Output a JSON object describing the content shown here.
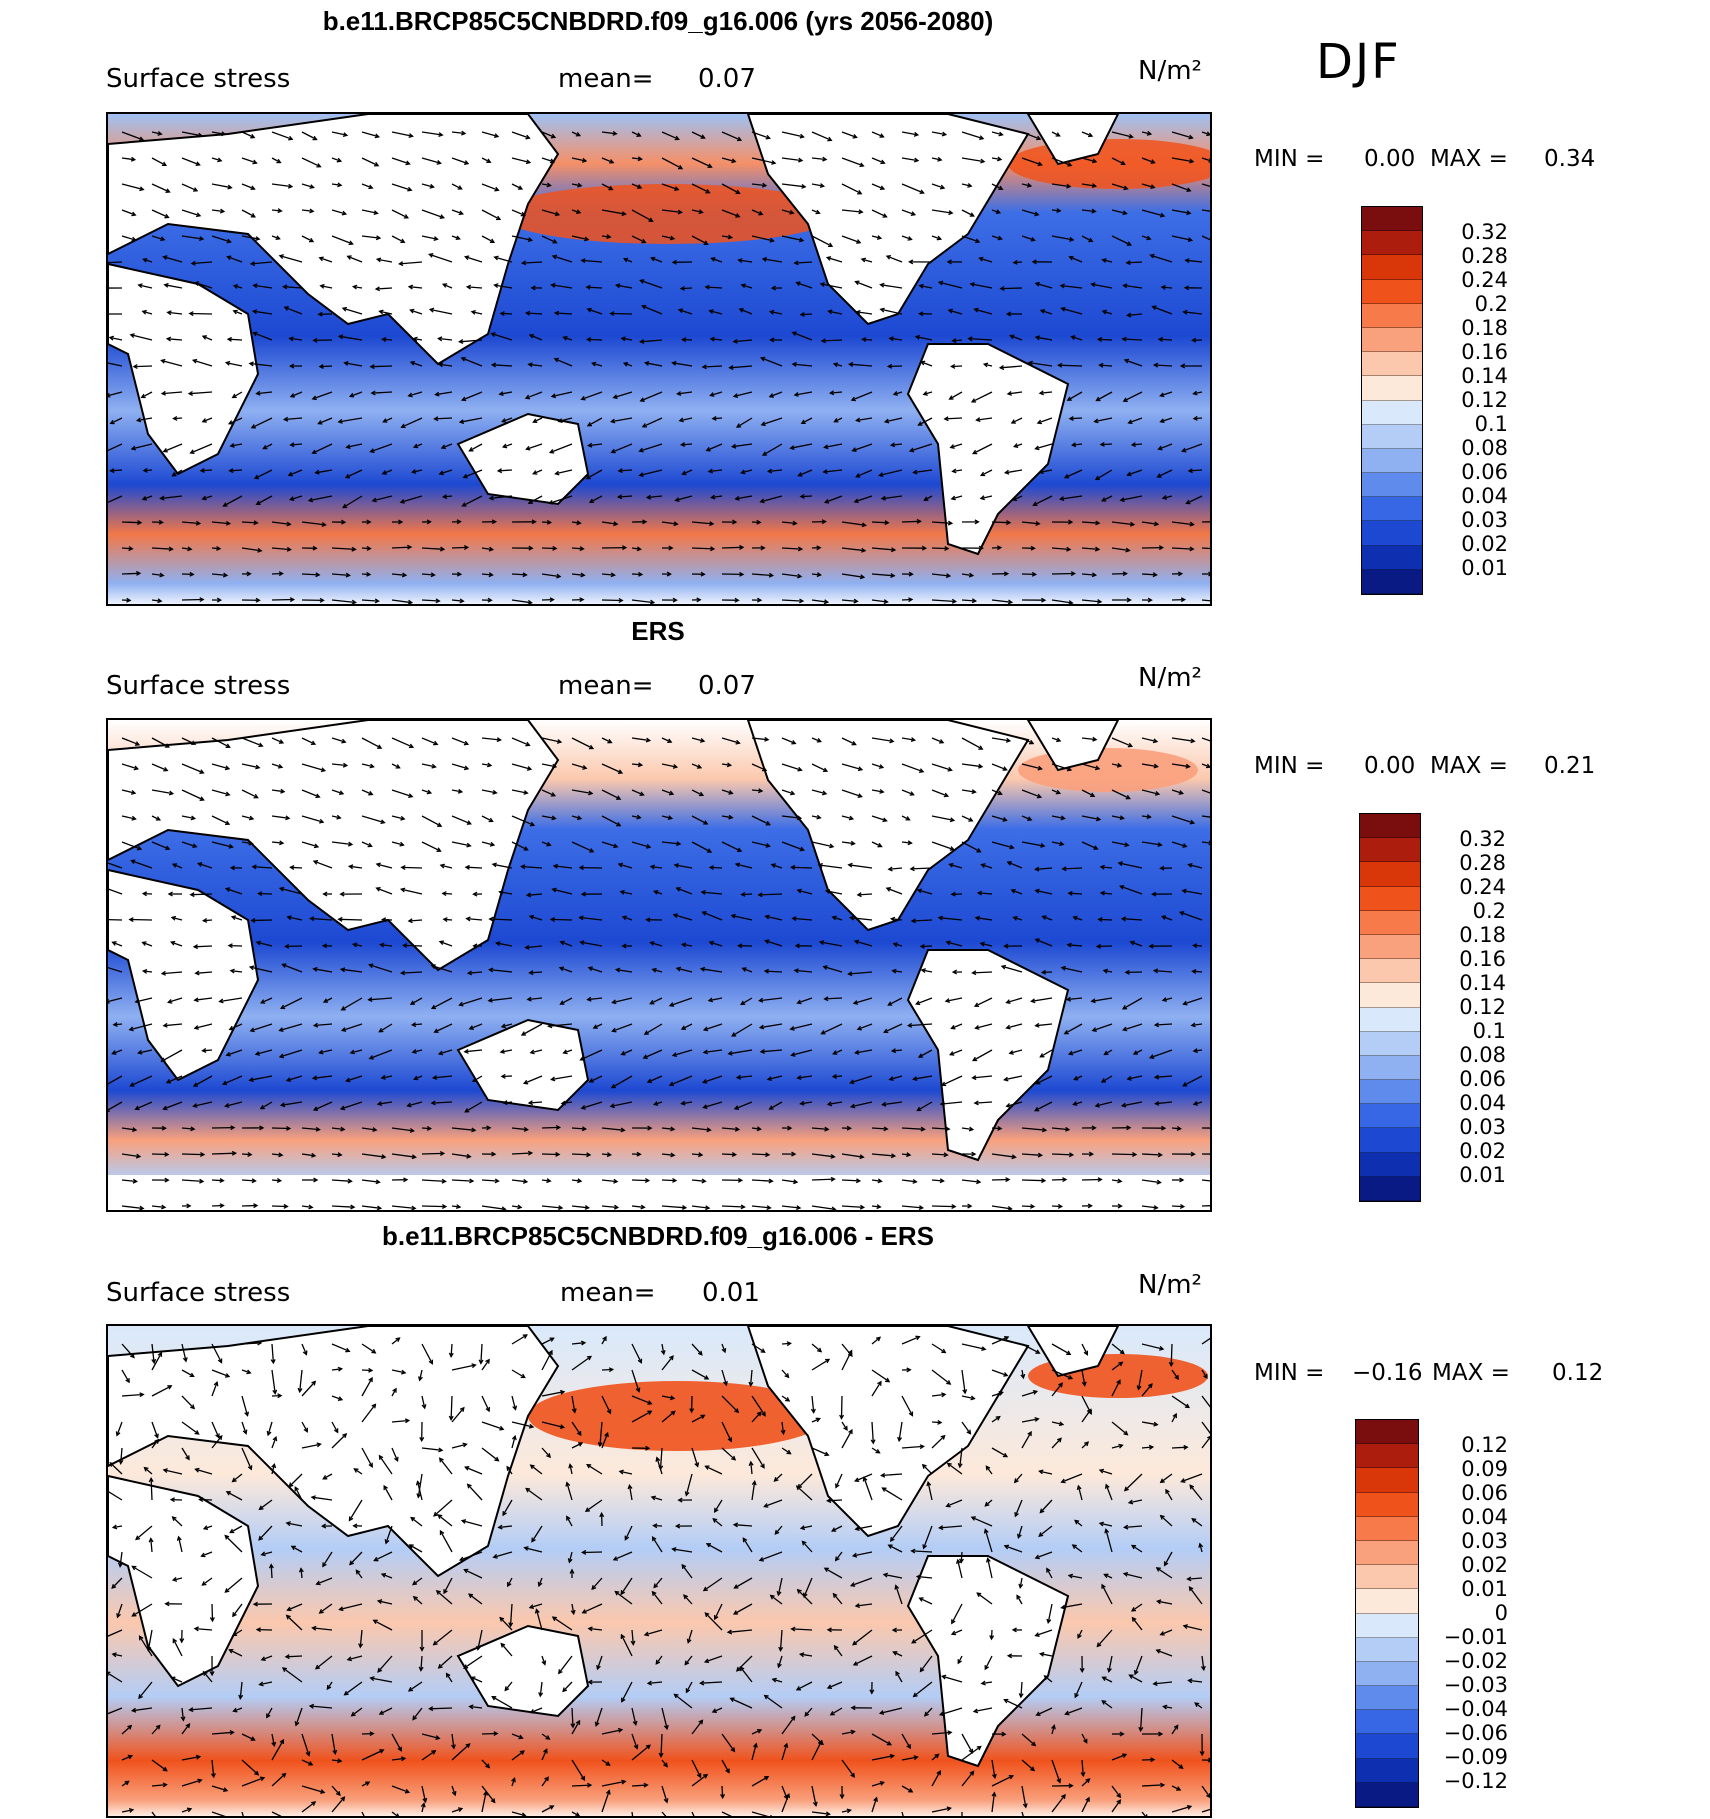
{
  "season": "DJF",
  "panels": [
    {
      "title": "b.e11.BRCP85C5CNBDRD.f09_g16.006 (yrs 2056-2080)",
      "variable": "Surface stress",
      "mean_label": "mean=",
      "mean_value": "0.07",
      "units": "N/m²",
      "min_label": "MIN =",
      "min_value": "0.00",
      "max_label": "MAX =",
      "max_value": "0.34",
      "colorbar_labels": [
        "0.32",
        "0.28",
        "0.24",
        "0.2",
        "0.18",
        "0.16",
        "0.14",
        "0.12",
        "0.1",
        "0.08",
        "0.06",
        "0.04",
        "0.03",
        "0.02",
        "0.01"
      ],
      "colorbar_colors": [
        "#7a0d0d",
        "#ad1d0e",
        "#d9370a",
        "#f0521c",
        "#f67a4a",
        "#f9a07c",
        "#fbc8ad",
        "#fde9da",
        "#d9e9fb",
        "#b3cdf6",
        "#8fb0f1",
        "#5e8bec",
        "#3767e5",
        "#1d49d2",
        "#0d2fb0",
        "#0a1a85"
      ]
    },
    {
      "title": "ERS",
      "variable": "Surface stress",
      "mean_label": "mean=",
      "mean_value": "0.07",
      "units": "N/m²",
      "min_label": "MIN =",
      "min_value": "0.00",
      "max_label": "MAX =",
      "max_value": "0.21",
      "colorbar_labels": [
        "0.32",
        "0.28",
        "0.24",
        "0.2",
        "0.18",
        "0.16",
        "0.14",
        "0.12",
        "0.1",
        "0.08",
        "0.06",
        "0.04",
        "0.03",
        "0.02",
        "0.01"
      ],
      "colorbar_colors": [
        "#7a0d0d",
        "#ad1d0e",
        "#d9370a",
        "#f0521c",
        "#f67a4a",
        "#f9a07c",
        "#fbc8ad",
        "#fde9da",
        "#d9e9fb",
        "#b3cdf6",
        "#8fb0f1",
        "#5e8bec",
        "#3767e5",
        "#1d49d2",
        "#0d2fb0",
        "#0a1a85"
      ]
    },
    {
      "title": "b.e11.BRCP85C5CNBDRD.f09_g16.006 - ERS",
      "variable": "Surface stress",
      "mean_label": "mean=",
      "mean_value": "0.01",
      "units": "N/m²",
      "min_label": "MIN =",
      "min_value": "−0.16",
      "max_label": "MAX =",
      "max_value": "0.12",
      "colorbar_labels": [
        "0.12",
        "0.09",
        "0.06",
        "0.04",
        "0.03",
        "0.02",
        "0.01",
        "0",
        "−0.01",
        "−0.02",
        "−0.03",
        "−0.04",
        "−0.06",
        "−0.09",
        "−0.12"
      ],
      "colorbar_colors": [
        "#7a0d0d",
        "#ad1d0e",
        "#d9370a",
        "#f0521c",
        "#f67a4a",
        "#f9a07c",
        "#fbc8ad",
        "#fde9da",
        "#d9e9fb",
        "#b3cdf6",
        "#8fb0f1",
        "#5e8bec",
        "#3767e5",
        "#1d49d2",
        "#0d2fb0",
        "#0a1a85"
      ]
    }
  ]
}
